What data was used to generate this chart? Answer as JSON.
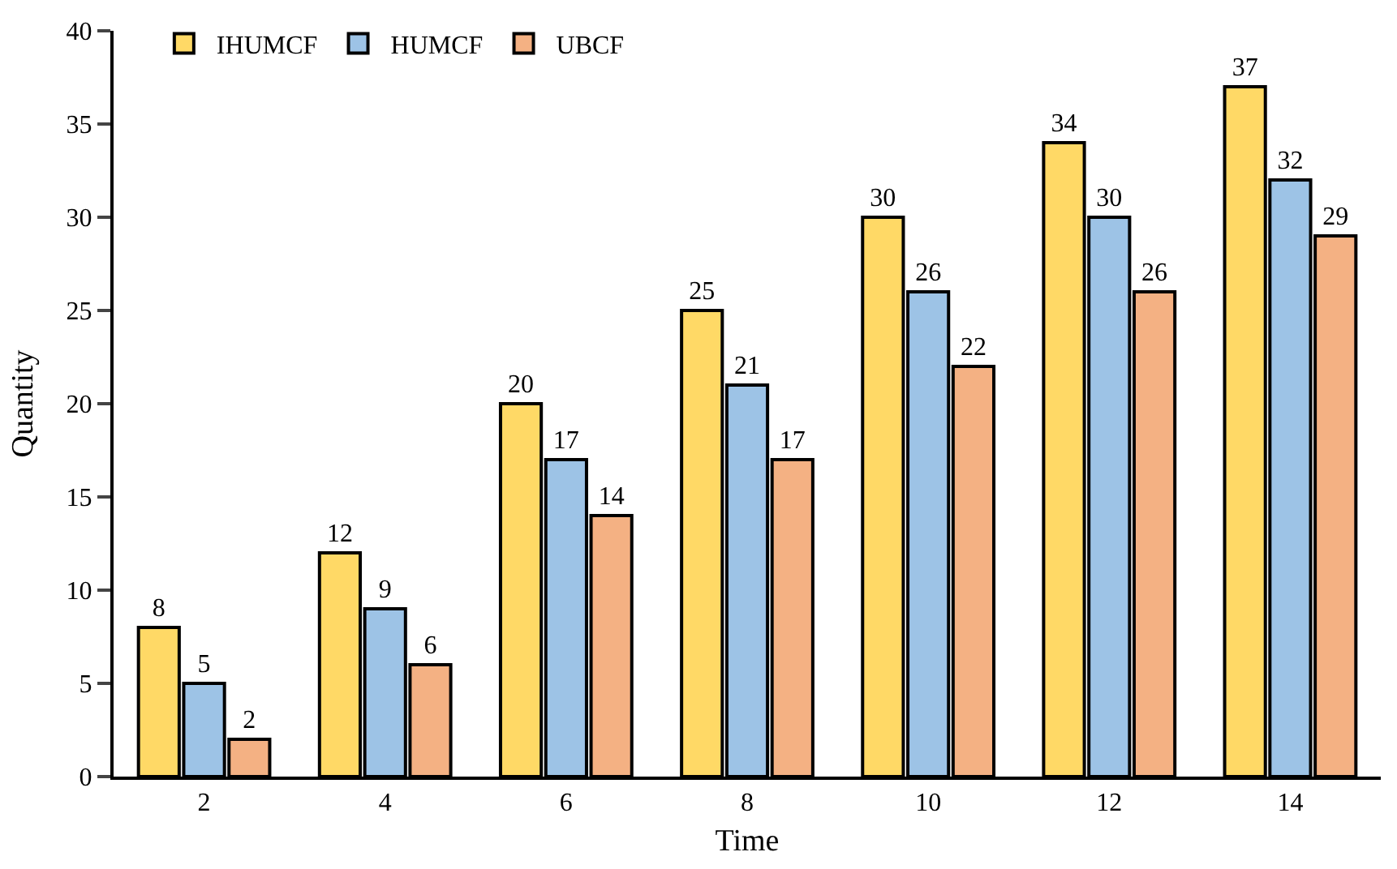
{
  "chart_data": {
    "type": "bar",
    "xlabel": "Time",
    "ylabel": "Quantity",
    "categories": [
      "2",
      "4",
      "6",
      "8",
      "10",
      "12",
      "14"
    ],
    "series": [
      {
        "name": "IHUMCF",
        "color": "#ffd966",
        "values": [
          8,
          12,
          20,
          25,
          30,
          34,
          37
        ]
      },
      {
        "name": "HUMCF",
        "color": "#9dc3e6",
        "values": [
          5,
          9,
          17,
          21,
          26,
          30,
          32
        ]
      },
      {
        "name": "UBCF",
        "color": "#f4b183",
        "values": [
          2,
          6,
          14,
          17,
          22,
          26,
          29
        ]
      }
    ],
    "ylim": [
      0,
      40
    ],
    "yticks": [
      0,
      5,
      10,
      15,
      20,
      25,
      30,
      35,
      40
    ],
    "legend": "top",
    "data_labels": true
  }
}
